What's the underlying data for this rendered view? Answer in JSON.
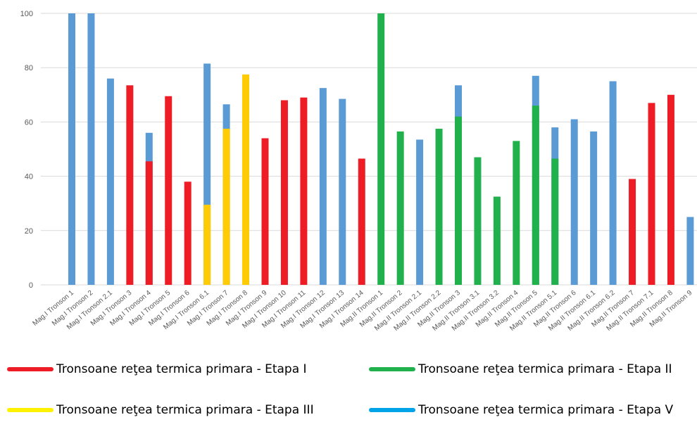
{
  "chart_data": {
    "type": "bar",
    "title": "",
    "xlabel": "",
    "ylabel": "",
    "ylim": [
      0,
      100
    ],
    "yticks": [
      0,
      20,
      40,
      60,
      80,
      100
    ],
    "grid": true,
    "legend_position": "bottom",
    "colors": {
      "etapa_I": "#ee1c25",
      "etapa_II": "#21b14c",
      "etapa_III": "#ffcb05",
      "etapa_V": "#5b9bd5"
    },
    "legend_colors": {
      "etapa_I": "#ee1c25",
      "etapa_II": "#21b14c",
      "etapa_III": "#fff200",
      "etapa_V": "#00a2e8"
    },
    "legend": [
      {
        "key": "etapa_I",
        "label": "Tronsoane reţea termica primara - Etapa I"
      },
      {
        "key": "etapa_II",
        "label": "Tronsoane reţea termica primara - Etapa II"
      },
      {
        "key": "etapa_III",
        "label": "Tronsoane reţea termica primara - Etapa III"
      },
      {
        "key": "etapa_V",
        "label": "Tronsoane reţea termica primara - Etapa V"
      }
    ],
    "categories": [
      "Mag.I Tronson 1",
      "Mag.I Tronson 2",
      "Mag.I Tronson  2.1",
      "Mag.I Tronson 3",
      "Mag.I Tronson 4",
      "Mag.I Tronson 5",
      "Mag.I Tronson 6",
      "Mag.I Tronson 6.1",
      "Mag.I Tronson 7",
      "Mag.I Tronson 8",
      "Mag.I Tronson 9",
      "Mag.I Tronson 10",
      "Mag.I Tronson 11",
      "Mag.I Tronson 12",
      "Mag.I Tronson 13",
      "Mag.I Tronson 14",
      "Mag.II Tronson 1",
      "Mag.II Tronson 2",
      "Mag.II Tronson 2.1",
      "Mag.II Tronson 2.2",
      "Mag.II Tronson 3",
      "Mag.II Tronson 3.1",
      "Mag.II Tronson 3.2",
      "Mag.II Tronson 4",
      "Mag.II Tronson 5",
      "Mag.II Tronson 5.1",
      "Mag.II Tronson 6",
      "Mag.II Tronson 6.1",
      "Mag.II Tronson 6.2",
      "Mag.II Tronson 7",
      "Mag.II Tronson 7.1",
      "Mag.II Tronson 8",
      "Mag.II Tronson 9"
    ],
    "bars": [
      [
        {
          "value": 100,
          "stage": "etapa_V"
        }
      ],
      [
        {
          "value": 100,
          "stage": "etapa_V"
        }
      ],
      [
        {
          "value": 76,
          "stage": "etapa_V"
        }
      ],
      [
        {
          "value": 73.5,
          "stage": "etapa_I"
        }
      ],
      [
        {
          "value": 56,
          "stage": "etapa_V"
        },
        {
          "value": 45.5,
          "stage": "etapa_I"
        }
      ],
      [
        {
          "value": 69.5,
          "stage": "etapa_I"
        }
      ],
      [
        {
          "value": 38,
          "stage": "etapa_I"
        }
      ],
      [
        {
          "value": 81.5,
          "stage": "etapa_V"
        },
        {
          "value": 29.5,
          "stage": "etapa_III"
        }
      ],
      [
        {
          "value": 66.5,
          "stage": "etapa_V"
        },
        {
          "value": 57.5,
          "stage": "etapa_III"
        }
      ],
      [
        {
          "value": 77.5,
          "stage": "etapa_III"
        }
      ],
      [
        {
          "value": 54,
          "stage": "etapa_I"
        }
      ],
      [
        {
          "value": 68,
          "stage": "etapa_I"
        }
      ],
      [
        {
          "value": 69,
          "stage": "etapa_I"
        }
      ],
      [
        {
          "value": 72.5,
          "stage": "etapa_V"
        }
      ],
      [
        {
          "value": 68.5,
          "stage": "etapa_V"
        }
      ],
      [
        {
          "value": 46.5,
          "stage": "etapa_I"
        }
      ],
      [
        {
          "value": 100,
          "stage": "etapa_II"
        }
      ],
      [
        {
          "value": 56.5,
          "stage": "etapa_II"
        }
      ],
      [
        {
          "value": 53.5,
          "stage": "etapa_V"
        }
      ],
      [
        {
          "value": 57.5,
          "stage": "etapa_II"
        }
      ],
      [
        {
          "value": 73.5,
          "stage": "etapa_V"
        },
        {
          "value": 62,
          "stage": "etapa_II"
        }
      ],
      [
        {
          "value": 47,
          "stage": "etapa_II"
        }
      ],
      [
        {
          "value": 32.5,
          "stage": "etapa_II"
        }
      ],
      [
        {
          "value": 53,
          "stage": "etapa_II"
        }
      ],
      [
        {
          "value": 77,
          "stage": "etapa_V"
        },
        {
          "value": 66,
          "stage": "etapa_II"
        }
      ],
      [
        {
          "value": 58,
          "stage": "etapa_V"
        },
        {
          "value": 46.5,
          "stage": "etapa_II"
        }
      ],
      [
        {
          "value": 61,
          "stage": "etapa_V"
        }
      ],
      [
        {
          "value": 56.5,
          "stage": "etapa_V"
        }
      ],
      [
        {
          "value": 75,
          "stage": "etapa_V"
        }
      ],
      [
        {
          "value": 39,
          "stage": "etapa_I"
        }
      ],
      [
        {
          "value": 67,
          "stage": "etapa_I"
        }
      ],
      [
        {
          "value": 70,
          "stage": "etapa_I"
        }
      ],
      [
        {
          "value": 25,
          "stage": "etapa_V"
        }
      ]
    ]
  }
}
